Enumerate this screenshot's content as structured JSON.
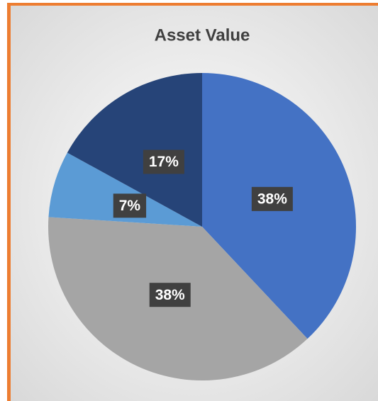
{
  "chart_data": {
    "type": "pie",
    "title": "Asset Value",
    "values": [
      38,
      38,
      7,
      17
    ],
    "value_labels": [
      "38%",
      "38%",
      "7%",
      "17%"
    ],
    "colors": [
      "#4472c4",
      "#a5a5a5",
      "#5b9bd5",
      "#264478"
    ]
  }
}
